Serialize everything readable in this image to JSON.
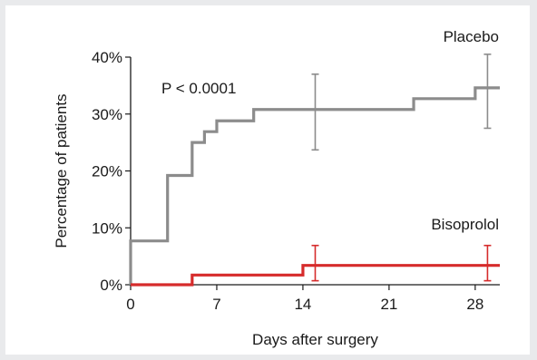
{
  "chart_data": {
    "type": "line",
    "step": true,
    "xlabel": "Days after surgery",
    "ylabel": "Percentage of patients",
    "xlim": [
      0,
      30
    ],
    "ylim": [
      0,
      40
    ],
    "x_ticks": [
      0,
      7,
      14,
      21,
      28
    ],
    "x_tick_labels": [
      "0",
      "7",
      "14",
      "21",
      "28"
    ],
    "y_ticks": [
      0,
      10,
      20,
      30,
      40
    ],
    "y_tick_labels": [
      "0%",
      "10%",
      "20%",
      "30%",
      "40%"
    ],
    "grid": false,
    "annotation": "P < 0.0001",
    "series": [
      {
        "name": "Placebo",
        "color": "#8c8c8c",
        "x": [
          0,
          3,
          5,
          6,
          7,
          10,
          23,
          28,
          30
        ],
        "y": [
          7.7,
          19.2,
          25,
          26.9,
          28.8,
          30.8,
          32.7,
          34.6,
          34.6
        ],
        "error_bars": [
          {
            "x": 15,
            "y": 30.8,
            "low": 23.7,
            "high": 37
          },
          {
            "x": 29,
            "y": 34.6,
            "low": 27.5,
            "high": 40.5
          }
        ]
      },
      {
        "name": "Bisoprolol",
        "color": "#d62b2b",
        "x": [
          0,
          5,
          14,
          30
        ],
        "y": [
          0,
          1.7,
          3.4,
          3.4
        ],
        "error_bars": [
          {
            "x": 15,
            "y": 3.4,
            "low": 0.7,
            "high": 6.9
          },
          {
            "x": 29,
            "y": 3.4,
            "low": 0.7,
            "high": 6.9
          }
        ]
      }
    ]
  }
}
